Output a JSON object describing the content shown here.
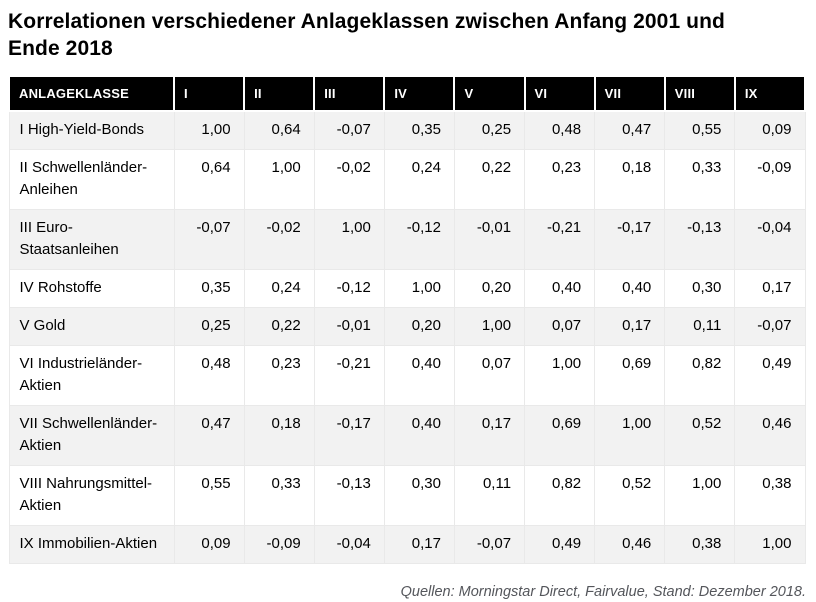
{
  "chart_data": {
    "type": "table",
    "title": "Korrelationen verschiedener Anlageklassen zwischen Anfang 2001 und Ende 2018",
    "header": [
      "ANLAGEKLASSE",
      "I",
      "II",
      "III",
      "IV",
      "V",
      "VI",
      "VII",
      "VIII",
      "IX"
    ],
    "rows": [
      {
        "label": "I High-Yield-Bonds",
        "values": [
          "1,00",
          "0,64",
          "-0,07",
          "0,35",
          "0,25",
          "0,48",
          "0,47",
          "0,55",
          "0,09"
        ]
      },
      {
        "label": "II Schwellenländer-Anleihen",
        "values": [
          "0,64",
          "1,00",
          "-0,02",
          "0,24",
          "0,22",
          "0,23",
          "0,18",
          "0,33",
          "-0,09"
        ]
      },
      {
        "label": "III Euro-Staatsanleihen",
        "values": [
          "-0,07",
          "-0,02",
          "1,00",
          "-0,12",
          "-0,01",
          "-0,21",
          "-0,17",
          "-0,13",
          "-0,04"
        ]
      },
      {
        "label": "IV Rohstoffe",
        "values": [
          "0,35",
          "0,24",
          "-0,12",
          "1,00",
          "0,20",
          "0,40",
          "0,40",
          "0,30",
          "0,17"
        ]
      },
      {
        "label": "V Gold",
        "values": [
          "0,25",
          "0,22",
          "-0,01",
          "0,20",
          "1,00",
          "0,07",
          "0,17",
          "0,11",
          "-0,07"
        ]
      },
      {
        "label": "VI Industrieländer-Aktien",
        "values": [
          "0,48",
          "0,23",
          "-0,21",
          "0,40",
          "0,07",
          "1,00",
          "0,69",
          "0,82",
          "0,49"
        ]
      },
      {
        "label": "VII Schwellenländer-Aktien",
        "values": [
          "0,47",
          "0,18",
          "-0,17",
          "0,40",
          "0,17",
          "0,69",
          "1,00",
          "0,52",
          "0,46"
        ]
      },
      {
        "label": "VIII Nahrungsmittel-Aktien",
        "values": [
          "0,55",
          "0,33",
          "-0,13",
          "0,30",
          "0,11",
          "0,82",
          "0,52",
          "1,00",
          "0,38"
        ]
      },
      {
        "label": "IX Immobilien-Aktien",
        "values": [
          "0,09",
          "-0,09",
          "-0,04",
          "0,17",
          "-0,07",
          "0,49",
          "0,46",
          "0,38",
          "1,00"
        ]
      }
    ],
    "source": "Quellen: Morningstar Direct, Fairvalue, Stand: Dezember 2018.",
    "decimal_separator": ",",
    "layout": {
      "zebra_start": "gray",
      "value_alignment": "right"
    }
  },
  "colors": {
    "header_bg": "#000000",
    "header_text": "#ffffff",
    "row_alt_bg": "#f2f2f2",
    "row_bg": "#ffffff",
    "cell_border": "#e9e9e9",
    "title_text": "#000000",
    "source_text": "#54565b"
  }
}
